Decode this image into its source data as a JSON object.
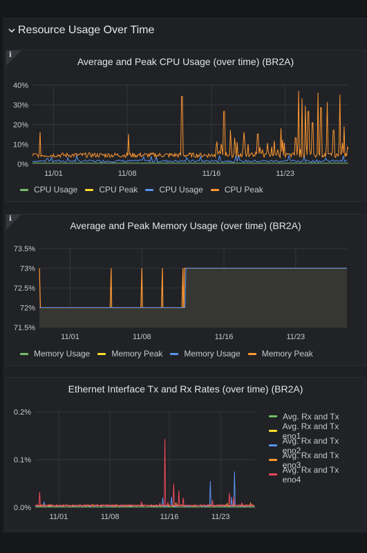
{
  "row": {
    "title": "Resource Usage Over Time"
  },
  "cpu_panel": {
    "title": "Average and Peak CPU Usage (over time) (BR2A)",
    "info": "i",
    "legend": [
      {
        "label": "CPU Usage",
        "color": "#73bf69"
      },
      {
        "label": "CPU Peak",
        "color": "#fade2a"
      },
      {
        "label": "CPU Usage",
        "color": "#5794f2"
      },
      {
        "label": "CPU Peak",
        "color": "#ff9830"
      }
    ]
  },
  "mem_panel": {
    "title": "Average and Peak Memory Usage (over time) (BR2A)",
    "info": "i",
    "legend": [
      {
        "label": "Memory Usage",
        "color": "#73bf69"
      },
      {
        "label": "Memory Peak",
        "color": "#fade2a"
      },
      {
        "label": "Memory Usage",
        "color": "#5794f2"
      },
      {
        "label": "Memory Peak",
        "color": "#ff9830"
      }
    ]
  },
  "net_panel": {
    "title": "Ethernet Interface Tx and Rx Rates (over time) (BR2A)",
    "legend": [
      {
        "label": "Avg. Rx and Tx",
        "color": "#73bf69"
      },
      {
        "label": "Avg. Rx and Tx eno1",
        "color": "#fade2a"
      },
      {
        "label": "Avg. Rx and Tx eno2",
        "color": "#5794f2"
      },
      {
        "label": "Avg. Rx and Tx eno3",
        "color": "#ff9830"
      },
      {
        "label": "Avg. Rx and Tx eno4",
        "color": "#f2495c"
      }
    ]
  },
  "chart_data": [
    {
      "type": "line",
      "title": "Average and Peak CPU Usage (over time) (BR2A)",
      "x_ticks": [
        "11/01",
        "11/08",
        "11/16",
        "11/23"
      ],
      "y_ticks": [
        "0%",
        "10%",
        "20%",
        "30%",
        "40%"
      ],
      "ylim": [
        0,
        42
      ],
      "x_range_days": [
        0,
        30
      ],
      "x_tick_days": [
        2,
        9,
        17,
        24
      ],
      "series": [
        {
          "name": "CPU Usage",
          "color": "#73bf69",
          "baseline": 0.5
        },
        {
          "name": "CPU Peak",
          "color": "#fade2a",
          "baseline": 4
        },
        {
          "name": "CPU Usage",
          "color": "#5794f2",
          "baseline": 1
        },
        {
          "name": "CPU Peak",
          "color": "#ff9830",
          "baseline": 4,
          "spikes": [
            [
              0.7,
              17
            ],
            [
              9.1,
              16
            ],
            [
              14.2,
              36
            ],
            [
              17.5,
              12
            ],
            [
              18.2,
              28
            ],
            [
              18.8,
              18
            ],
            [
              19.2,
              14
            ],
            [
              20.1,
              17
            ],
            [
              21.4,
              16
            ],
            [
              23.6,
              19
            ],
            [
              25.0,
              14
            ],
            [
              25.3,
              39
            ],
            [
              25.6,
              35
            ],
            [
              25.9,
              31
            ],
            [
              26.2,
              28
            ],
            [
              26.6,
              22
            ],
            [
              27.1,
              38
            ],
            [
              27.4,
              30
            ],
            [
              28.0,
              33
            ],
            [
              28.6,
              18
            ],
            [
              29.2,
              37
            ],
            [
              29.6,
              20
            ]
          ]
        }
      ]
    },
    {
      "type": "area",
      "title": "Average and Peak Memory Usage (over time) (BR2A)",
      "x_ticks": [
        "11/01",
        "11/08",
        "11/16",
        "11/23"
      ],
      "y_ticks": [
        "71.5%",
        "72%",
        "72.5%",
        "73%",
        "73.5%"
      ],
      "ylim": [
        71.5,
        73.5
      ],
      "x_range_days": [
        0,
        30
      ],
      "x_tick_days": [
        3,
        10,
        18,
        25
      ],
      "series": [
        {
          "name": "Memory Usage",
          "color": "#73bf69"
        },
        {
          "name": "Memory Peak",
          "color": "#fade2a"
        },
        {
          "name": "Memory Usage",
          "color": "#5794f2",
          "steps": [
            [
              0,
              72
            ],
            [
              14.2,
              72
            ],
            [
              14.3,
              73
            ],
            [
              30,
              73
            ]
          ]
        },
        {
          "name": "Memory Peak",
          "color": "#ff9830",
          "steps": [
            [
              0,
              73
            ],
            [
              0.1,
              72
            ],
            [
              6.9,
              72
            ],
            [
              7.0,
              73
            ],
            [
              7.05,
              72
            ],
            [
              9.9,
              72
            ],
            [
              10.0,
              73
            ],
            [
              10.05,
              72
            ],
            [
              11.9,
              72
            ],
            [
              12.0,
              73
            ],
            [
              12.05,
              72
            ],
            [
              13.9,
              72
            ],
            [
              14.0,
              73
            ],
            [
              14.05,
              72
            ],
            [
              14.1,
              72
            ],
            [
              14.15,
              73
            ],
            [
              30,
              73
            ]
          ]
        }
      ]
    },
    {
      "type": "line",
      "title": "Ethernet Interface Tx and Rx Rates (over time) (BR2A)",
      "x_ticks": [
        "11/01",
        "11/08",
        "11/16",
        "11/23"
      ],
      "y_ticks": [
        "0.0%",
        "0.1%",
        "0.2%"
      ],
      "ylim": [
        0,
        0.2
      ],
      "x_range_days": [
        0,
        30
      ],
      "x_tick_days": [
        3.2,
        10.2,
        18.3,
        25.3
      ],
      "series": [
        {
          "name": "Avg. Rx and Tx",
          "color": "#73bf69"
        },
        {
          "name": "Avg. Rx and Tx eno1",
          "color": "#fade2a"
        },
        {
          "name": "Avg. Rx and Tx eno2",
          "color": "#5794f2",
          "spikes": [
            [
              1.2,
              0.012
            ],
            [
              7.3,
              0.004
            ],
            [
              17.4,
              0.02
            ],
            [
              18.6,
              0.022
            ],
            [
              23.9,
              0.055
            ],
            [
              26.8,
              0.022
            ],
            [
              27.2,
              0.075
            ]
          ]
        },
        {
          "name": "Avg. Rx and Tx eno3",
          "color": "#ff9830",
          "spikes": [
            [
              7.9,
              0.006
            ],
            [
              19.2,
              0.01
            ],
            [
              26.2,
              0.008
            ],
            [
              29.4,
              0.009
            ]
          ]
        },
        {
          "name": "Avg. Rx and Tx eno4",
          "color": "#f2495c",
          "spikes": [
            [
              0.6,
              0.032
            ],
            [
              2.1,
              0.006
            ],
            [
              5.2,
              0.005
            ],
            [
              9.4,
              0.004
            ],
            [
              11.4,
              0.004
            ],
            [
              14.5,
              0.012
            ],
            [
              17.0,
              0.008
            ],
            [
              17.7,
              0.143
            ],
            [
              18.1,
              0.01
            ],
            [
              18.9,
              0.05
            ],
            [
              19.6,
              0.035
            ],
            [
              20.2,
              0.02
            ],
            [
              24.2,
              0.015
            ],
            [
              26.5,
              0.03
            ],
            [
              27.1,
              0.022
            ],
            [
              28.2,
              0.01
            ],
            [
              29.5,
              0.006
            ]
          ]
        }
      ]
    }
  ]
}
